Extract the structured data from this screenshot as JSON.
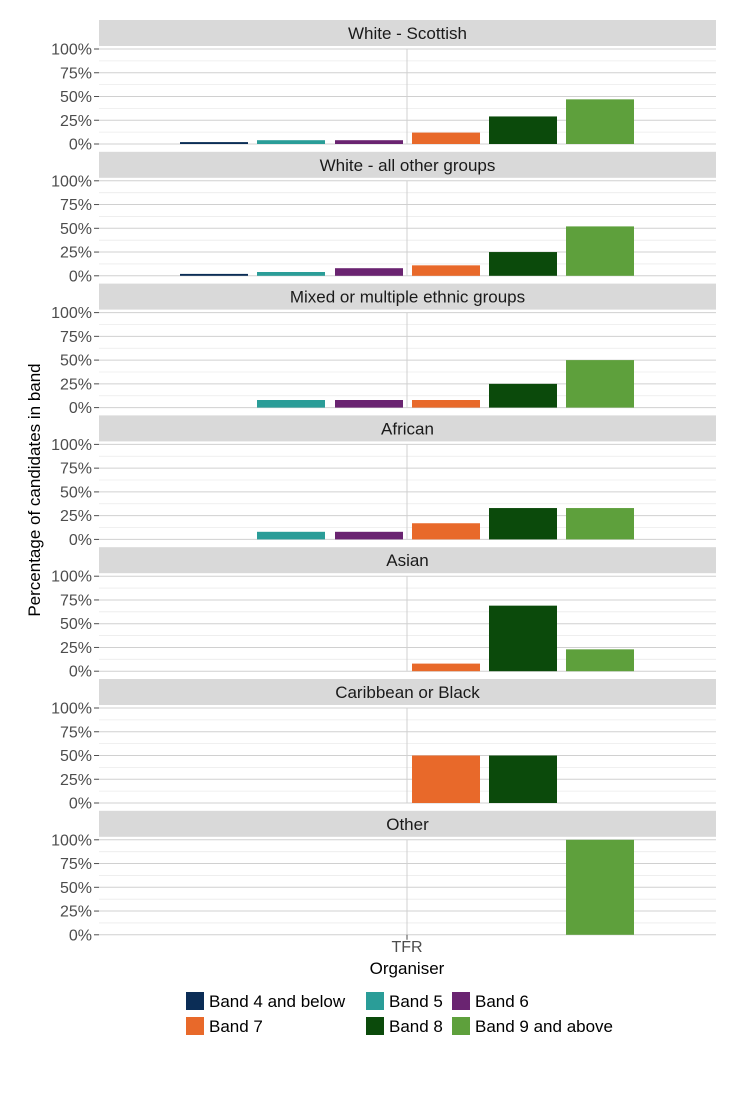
{
  "chart_data": {
    "type": "bar",
    "layout": "faceted",
    "xlabel": "Organiser",
    "ylabel": "Percentage of candidates in band",
    "x_category": "TFR",
    "ylim": [
      0,
      1
    ],
    "yticks": [
      "0%",
      "25%",
      "50%",
      "75%",
      "100%"
    ],
    "grid": true,
    "legend_position": "bottom",
    "series": [
      {
        "name": "Band 4 and below",
        "color": "#0b2d56"
      },
      {
        "name": "Band 5",
        "color": "#2a9d98"
      },
      {
        "name": "Band 6",
        "color": "#6a2471"
      },
      {
        "name": "Band 7",
        "color": "#e8692a"
      },
      {
        "name": "Band 8",
        "color": "#0b4a0b"
      },
      {
        "name": "Band 9 and above",
        "color": "#5ea03c"
      }
    ],
    "facets": [
      {
        "title": "White - Scottish",
        "values": [
          0.02,
          0.04,
          0.04,
          0.12,
          0.29,
          0.47
        ]
      },
      {
        "title": "White - all other groups",
        "values": [
          0.02,
          0.04,
          0.08,
          0.11,
          0.25,
          0.52
        ]
      },
      {
        "title": "Mixed or multiple ethnic groups",
        "values": [
          0,
          0.08,
          0.08,
          0.08,
          0.25,
          0.5
        ]
      },
      {
        "title": "African",
        "values": [
          0,
          0.08,
          0.08,
          0.17,
          0.33,
          0.33
        ]
      },
      {
        "title": "Asian",
        "values": [
          0,
          0,
          0,
          0.08,
          0.69,
          0.23
        ]
      },
      {
        "title": "Caribbean or Black",
        "values": [
          0,
          0,
          0,
          0.5,
          0.5,
          0
        ]
      },
      {
        "title": "Other",
        "values": [
          0,
          0,
          0,
          0,
          0,
          1
        ]
      }
    ]
  }
}
